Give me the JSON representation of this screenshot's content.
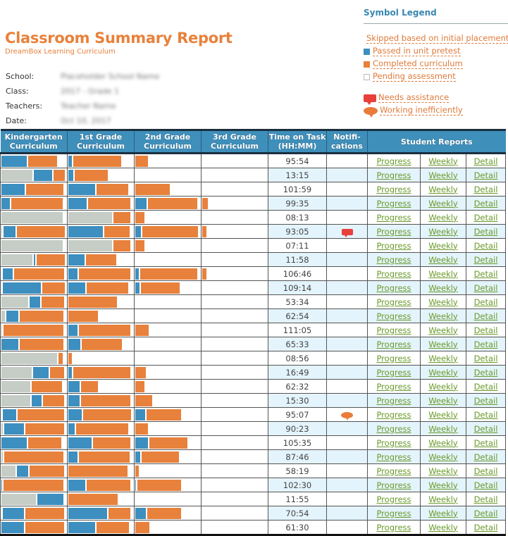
{
  "header": {
    "title": "Classroom Summary Report",
    "subtitle": "DreamBox Learning Curriculum",
    "meta": [
      {
        "label": "School:",
        "value": "Placeholder School Name"
      },
      {
        "label": "Class:",
        "value": "2017 - Grade 1"
      },
      {
        "label": "Teachers:",
        "value": "Teacher Name"
      },
      {
        "label": "Date:",
        "value": "Oct 10, 2017"
      }
    ]
  },
  "legend": {
    "title": "Symbol Legend",
    "items": [
      {
        "label": "Skipped based on initial placement",
        "color": "#c5cdc6",
        "icon": "square-swatch"
      },
      {
        "label": "Passed in unit pretest",
        "color": "#3d8fbf",
        "icon": "square-swatch"
      },
      {
        "label": "Completed curriculum",
        "color": "#e8813b",
        "icon": "square-swatch"
      },
      {
        "label": "Pending assessment",
        "color": "#ffffff",
        "icon": "square-swatch-outline"
      }
    ],
    "notifications": [
      {
        "label": "Needs assistance",
        "color": "#e8403a",
        "icon": "speech-bubble-icon"
      },
      {
        "label": "Working inefficiently",
        "color": "#ea7b3a",
        "icon": "thought-bubble-icon"
      }
    ]
  },
  "table": {
    "headers": {
      "k": "Kindergarten Curriculum",
      "g1": "1st Grade Curriculum",
      "g2": "2nd Grade Curriculum",
      "g3": "3rd Grade Curriculum",
      "time": "Time on Task (HH:MM)",
      "notif": "Notifi- cations",
      "reports": "Student Reports"
    },
    "link_labels": {
      "progress": "Progress",
      "weekly": "Weekly",
      "detail": "Detail"
    },
    "rows": [
      {
        "time": "95:54",
        "notif": "",
        "k": [
          [
            "passed",
            41
          ],
          [
            "completed",
            47
          ]
        ],
        "g1": [
          [
            "passed",
            8
          ],
          [
            "completed",
            76
          ]
        ],
        "g2": [
          [
            "completed",
            22
          ]
        ],
        "g3": []
      },
      {
        "time": "13:15",
        "notif": "",
        "k": [
          [
            "skipped",
            50
          ],
          [
            "passed",
            30
          ],
          [
            "completed",
            20
          ]
        ],
        "g1": [
          [
            "passed",
            10
          ],
          [
            "completed",
            53
          ]
        ],
        "g2": [],
        "g3": []
      },
      {
        "time": "101:59",
        "notif": "",
        "k": [
          [
            "passed",
            38
          ],
          [
            "completed",
            60
          ]
        ],
        "g1": [
          [
            "passed",
            44
          ],
          [
            "completed",
            51
          ]
        ],
        "g2": [
          [
            "completed",
            55
          ]
        ],
        "g3": []
      },
      {
        "time": "99:35",
        "notif": "",
        "k": [
          [
            "passed",
            15
          ],
          [
            "completed",
            82
          ]
        ],
        "g1": [
          [
            "passed",
            30
          ],
          [
            "completed",
            68
          ]
        ],
        "g2": [
          [
            "passed",
            20
          ],
          [
            "completed",
            78
          ]
        ],
        "g3": [
          [
            "completed",
            11
          ]
        ]
      },
      {
        "time": "08:13",
        "notif": "",
        "k": [
          [
            "skipped",
            97
          ]
        ],
        "g1": [
          [
            "skipped",
            70
          ],
          [
            "completed",
            28
          ]
        ],
        "g2": [
          [
            "completed",
            16
          ]
        ],
        "g3": []
      },
      {
        "time": "93:05",
        "notif": "needs-assistance",
        "k": [
          [
            "skipped",
            3
          ],
          [
            "passed",
            21
          ],
          [
            "completed",
            76
          ]
        ],
        "g1": [
          [
            "passed",
            55
          ],
          [
            "completed",
            42
          ]
        ],
        "g2": [
          [
            "passed",
            11
          ],
          [
            "completed",
            88
          ]
        ],
        "g3": [
          [
            "completed",
            9
          ]
        ]
      },
      {
        "time": "07:11",
        "notif": "",
        "k": [
          [
            "skipped",
            97
          ]
        ],
        "g1": [
          [
            "skipped",
            70
          ],
          [
            "completed",
            28
          ]
        ],
        "g2": [
          [
            "completed",
            16
          ]
        ],
        "g3": []
      },
      {
        "time": "11:58",
        "notif": "",
        "k": [
          [
            "skipped",
            50
          ],
          [
            "passed",
            4
          ],
          [
            "completed",
            46
          ]
        ],
        "g1": [
          [
            "passed",
            27
          ],
          [
            "completed",
            49
          ]
        ],
        "g2": [],
        "g3": []
      },
      {
        "time": "106:46",
        "notif": "",
        "k": [
          [
            "skipped",
            2
          ],
          [
            "passed",
            17
          ],
          [
            "completed",
            80
          ]
        ],
        "g1": [
          [
            "passed",
            16
          ],
          [
            "completed",
            82
          ]
        ],
        "g2": [
          [
            "passed",
            8
          ],
          [
            "completed",
            90
          ]
        ],
        "g3": [
          [
            "completed",
            9
          ]
        ]
      },
      {
        "time": "109:14",
        "notif": "",
        "k": [
          [
            "skipped",
            2
          ],
          [
            "passed",
            61
          ],
          [
            "completed",
            37
          ]
        ],
        "g1": [
          [
            "passed",
            28
          ],
          [
            "completed",
            67
          ]
        ],
        "g2": [
          [
            "passed",
            9
          ],
          [
            "completed",
            62
          ]
        ],
        "g3": []
      },
      {
        "time": "53:34",
        "notif": "",
        "k": [
          [
            "skipped",
            44
          ],
          [
            "passed",
            18
          ],
          [
            "completed",
            37
          ]
        ],
        "g1": [
          [
            "completed",
            77
          ]
        ],
        "g2": [],
        "g3": []
      },
      {
        "time": "62:54",
        "notif": "",
        "k": [
          [
            "skipped",
            8
          ],
          [
            "passed",
            20
          ],
          [
            "completed",
            70
          ]
        ],
        "g1": [
          [
            "completed",
            48
          ]
        ],
        "g2": [],
        "g3": []
      },
      {
        "time": "111:05",
        "notif": "",
        "k": [
          [
            "skipped",
            3
          ],
          [
            "completed",
            95
          ]
        ],
        "g1": [
          [
            "passed",
            16
          ],
          [
            "completed",
            82
          ]
        ],
        "g2": [
          [
            "completed",
            23
          ]
        ],
        "g3": []
      },
      {
        "time": "65:33",
        "notif": "",
        "k": [
          [
            "passed",
            28
          ],
          [
            "completed",
            70
          ]
        ],
        "g1": [
          [
            "passed",
            21
          ],
          [
            "completed",
            64
          ]
        ],
        "g2": [],
        "g3": []
      },
      {
        "time": "08:56",
        "notif": "",
        "k": [
          [
            "skipped",
            88
          ],
          [
            "completed",
            9
          ]
        ],
        "g1": [
          [
            "completed",
            8
          ]
        ],
        "g2": [],
        "g3": []
      },
      {
        "time": "16:49",
        "notif": "",
        "k": [
          [
            "skipped",
            49
          ],
          [
            "passed",
            26
          ],
          [
            "completed",
            24
          ]
        ],
        "g1": [
          [
            "passed",
            8
          ],
          [
            "completed",
            90
          ]
        ],
        "g2": [
          [
            "completed",
            18
          ]
        ],
        "g3": []
      },
      {
        "time": "62:32",
        "notif": "",
        "k": [
          [
            "skipped",
            47
          ],
          [
            "completed",
            49
          ]
        ],
        "g1": [
          [
            "passed",
            20
          ],
          [
            "completed",
            28
          ]
        ],
        "g2": [
          [
            "completed",
            16
          ]
        ],
        "g3": []
      },
      {
        "time": "15:30",
        "notif": "",
        "k": [
          [
            "skipped",
            47
          ],
          [
            "passed",
            17
          ],
          [
            "completed",
            35
          ]
        ],
        "g1": [
          [
            "passed",
            20
          ],
          [
            "completed",
            78
          ]
        ],
        "g2": [
          [
            "completed",
            28
          ]
        ],
        "g3": []
      },
      {
        "time": "95:07",
        "notif": "working-inefficiently",
        "k": [
          [
            "skipped",
            2
          ],
          [
            "passed",
            23
          ],
          [
            "completed",
            74
          ]
        ],
        "g1": [
          [
            "passed",
            23
          ],
          [
            "completed",
            76
          ]
        ],
        "g2": [
          [
            "passed",
            17
          ],
          [
            "completed",
            56
          ]
        ],
        "g3": []
      },
      {
        "time": "90:23",
        "notif": "",
        "k": [
          [
            "skipped",
            4
          ],
          [
            "passed",
            33
          ],
          [
            "completed",
            62
          ]
        ],
        "g1": [
          [
            "passed",
            12
          ],
          [
            "completed",
            83
          ]
        ],
        "g2": [
          [
            "completed",
            22
          ]
        ],
        "g3": []
      },
      {
        "time": "105:35",
        "notif": "",
        "k": [
          [
            "passed",
            41
          ],
          [
            "completed",
            54
          ]
        ],
        "g1": [
          [
            "passed",
            38
          ],
          [
            "completed",
            60
          ]
        ],
        "g2": [
          [
            "passed",
            22
          ],
          [
            "completed",
            61
          ]
        ],
        "g3": []
      },
      {
        "time": "87:46",
        "notif": "",
        "k": [
          [
            "skipped",
            4
          ],
          [
            "completed",
            94
          ]
        ],
        "g1": [
          [
            "passed",
            16
          ],
          [
            "completed",
            81
          ]
        ],
        "g2": [
          [
            "passed",
            10
          ],
          [
            "completed",
            60
          ]
        ],
        "g3": []
      },
      {
        "time": "58:19",
        "notif": "",
        "k": [
          [
            "skipped",
            24
          ],
          [
            "passed",
            19
          ],
          [
            "completed",
            56
          ]
        ],
        "g1": [
          [
            "completed",
            94
          ]
        ],
        "g2": [
          [
            "completed",
            8
          ]
        ],
        "g3": []
      },
      {
        "time": "102:30",
        "notif": "",
        "k": [
          [
            "passed",
            3
          ],
          [
            "completed",
            95
          ]
        ],
        "g1": [
          [
            "passed",
            28
          ],
          [
            "completed",
            70
          ]
        ],
        "g2": [
          [
            "passed",
            3
          ],
          [
            "completed",
            70
          ]
        ],
        "g3": []
      },
      {
        "time": "11:55",
        "notif": "",
        "k": [
          [
            "skipped",
            55
          ],
          [
            "passed",
            43
          ]
        ],
        "g1": [
          [
            "completed",
            78
          ]
        ],
        "g2": [],
        "g3": []
      },
      {
        "time": "70:54",
        "notif": "",
        "k": [
          [
            "skipped",
            2
          ],
          [
            "passed",
            35
          ],
          [
            "completed",
            62
          ]
        ],
        "g1": [
          [
            "passed",
            62
          ],
          [
            "completed",
            36
          ]
        ],
        "g2": [
          [
            "passed",
            18
          ],
          [
            "completed",
            55
          ]
        ],
        "g3": []
      },
      {
        "time": "61:30",
        "notif": "",
        "k": [
          [
            "passed",
            37
          ],
          [
            "completed",
            62
          ]
        ],
        "g1": [
          [
            "passed",
            43
          ],
          [
            "completed",
            53
          ]
        ],
        "g2": [
          [
            "completed",
            24
          ]
        ],
        "g3": []
      }
    ]
  }
}
